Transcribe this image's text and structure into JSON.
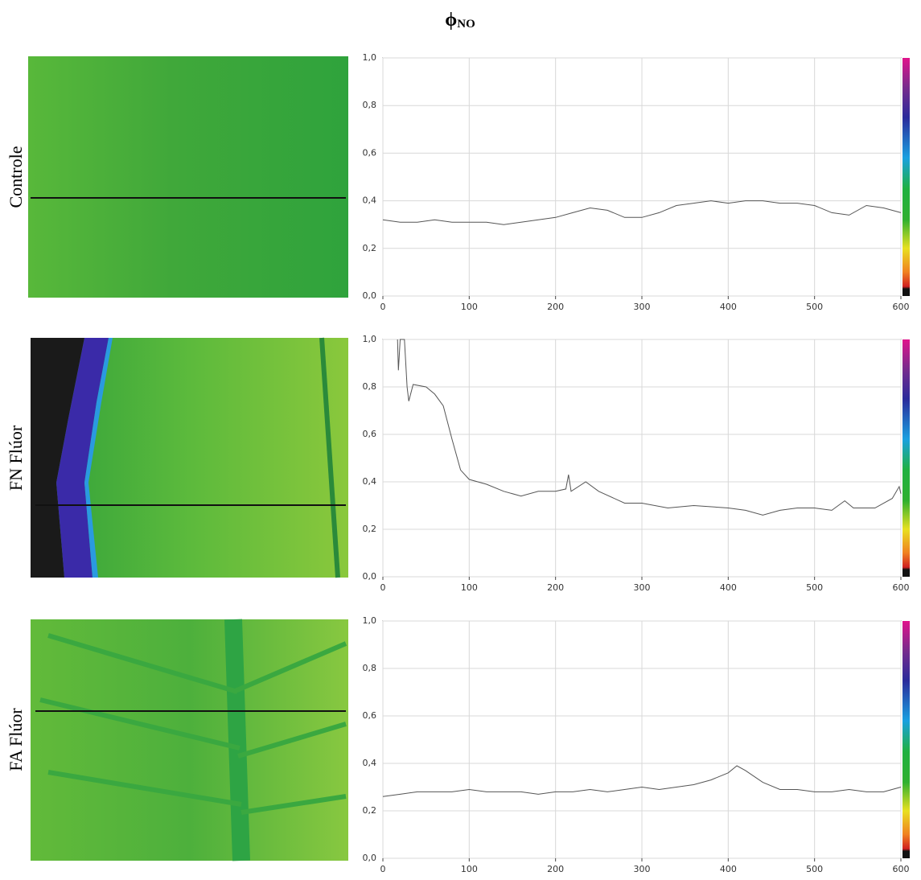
{
  "title": "ϕ",
  "title_subscript": "NO",
  "chart_data": [
    {
      "type": "line",
      "panel_label": "Controle",
      "xlim": [
        0,
        600
      ],
      "xticks": [
        0,
        100,
        200,
        300,
        400,
        500,
        600
      ],
      "ylim": [
        0,
        1
      ],
      "yticks": [
        {
          "value": 0,
          "label": "0,0"
        },
        {
          "value": 0.2,
          "label": "0,2"
        },
        {
          "value": 0.4,
          "label": "0,4"
        },
        {
          "value": 0.6,
          "label": "0,6"
        },
        {
          "value": 0.8,
          "label": "0,8"
        },
        {
          "value": 1,
          "label": "1,0"
        }
      ],
      "grid": true,
      "x": [
        0,
        20,
        40,
        60,
        80,
        100,
        120,
        140,
        160,
        180,
        200,
        220,
        240,
        260,
        280,
        300,
        320,
        340,
        360,
        380,
        400,
        420,
        440,
        460,
        480,
        500,
        520,
        540,
        560,
        580,
        600
      ],
      "series": [
        {
          "color": "#555555",
          "values": [
            0.32,
            0.31,
            0.31,
            0.32,
            0.31,
            0.31,
            0.31,
            0.3,
            0.31,
            0.32,
            0.33,
            0.35,
            0.37,
            0.36,
            0.33,
            0.33,
            0.35,
            0.38,
            0.39,
            0.4,
            0.39,
            0.4,
            0.4,
            0.39,
            0.39,
            0.38,
            0.35,
            0.34,
            0.38,
            0.37,
            0.35
          ]
        }
      ]
    },
    {
      "type": "line",
      "panel_label": "FN Flúor",
      "xlim": [
        0,
        600
      ],
      "xticks": [
        0,
        100,
        200,
        300,
        400,
        500,
        600
      ],
      "ylim": [
        0,
        1
      ],
      "yticks": [
        {
          "value": 0,
          "label": "0,0"
        },
        {
          "value": 0.2,
          "label": "0,2"
        },
        {
          "value": 0.4,
          "label": "0,4"
        },
        {
          "value": 0.6,
          "label": "0,6"
        },
        {
          "value": 0.8,
          "label": "0,8"
        },
        {
          "value": 1,
          "label": "1,0"
        }
      ],
      "grid": true,
      "x": [
        17,
        18,
        20,
        25,
        28,
        30,
        35,
        50,
        60,
        70,
        80,
        90,
        100,
        120,
        140,
        160,
        180,
        200,
        212,
        215,
        218,
        235,
        250,
        280,
        300,
        330,
        360,
        400,
        420,
        440,
        460,
        480,
        500,
        520,
        535,
        545,
        570,
        590,
        598,
        600
      ],
      "series": [
        {
          "color": "#555555",
          "values": [
            1.0,
            0.87,
            1.0,
            1.0,
            0.8,
            0.74,
            0.81,
            0.8,
            0.77,
            0.72,
            0.58,
            0.45,
            0.41,
            0.39,
            0.36,
            0.34,
            0.36,
            0.36,
            0.37,
            0.43,
            0.36,
            0.4,
            0.36,
            0.31,
            0.31,
            0.29,
            0.3,
            0.29,
            0.28,
            0.26,
            0.28,
            0.29,
            0.29,
            0.28,
            0.32,
            0.29,
            0.29,
            0.33,
            0.38,
            0.35
          ]
        }
      ]
    },
    {
      "type": "line",
      "panel_label": "FA Flúor",
      "xlim": [
        0,
        600
      ],
      "xticks": [
        0,
        100,
        200,
        300,
        400,
        500,
        600
      ],
      "ylim": [
        0,
        1
      ],
      "yticks": [
        {
          "value": 0,
          "label": "0,0"
        },
        {
          "value": 0.2,
          "label": "0,2"
        },
        {
          "value": 0.4,
          "label": "0,4"
        },
        {
          "value": 0.6,
          "label": "0,6"
        },
        {
          "value": 0.8,
          "label": "0,8"
        },
        {
          "value": 1,
          "label": "1,0"
        }
      ],
      "grid": true,
      "x": [
        0,
        20,
        40,
        60,
        80,
        100,
        120,
        140,
        160,
        180,
        200,
        220,
        240,
        260,
        280,
        300,
        320,
        340,
        360,
        380,
        400,
        410,
        420,
        440,
        460,
        480,
        500,
        520,
        540,
        560,
        580,
        600
      ],
      "series": [
        {
          "color": "#555555",
          "values": [
            0.26,
            0.27,
            0.28,
            0.28,
            0.28,
            0.29,
            0.28,
            0.28,
            0.28,
            0.27,
            0.28,
            0.28,
            0.29,
            0.28,
            0.29,
            0.3,
            0.29,
            0.3,
            0.31,
            0.33,
            0.36,
            0.39,
            0.37,
            0.32,
            0.29,
            0.29,
            0.28,
            0.28,
            0.29,
            0.28,
            0.28,
            0.3
          ]
        }
      ]
    }
  ]
}
